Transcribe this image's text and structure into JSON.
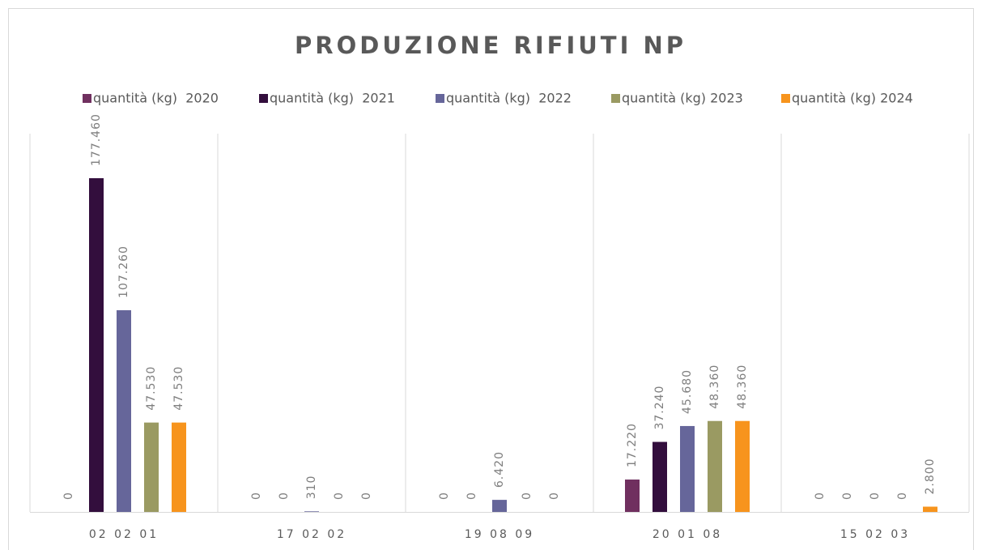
{
  "chart_data": {
    "type": "bar",
    "title": "PRODUZIONE RIFIUTI NP",
    "categories": [
      "02 02 01",
      "17 02 02",
      "19 08 09",
      "20 01 08",
      "15 02 03"
    ],
    "series": [
      {
        "name": "quantità (kg)  2020",
        "color": "#70305f",
        "values": [
          0,
          0,
          0,
          17220,
          0
        ],
        "value_labels": [
          "0",
          "0",
          "0",
          "17.220",
          "0"
        ]
      },
      {
        "name": "quantità (kg)  2021",
        "color": "#330e3d",
        "values": [
          177460,
          0,
          0,
          37240,
          0
        ],
        "value_labels": [
          "177.460",
          "0",
          "0",
          "37.240",
          "0"
        ]
      },
      {
        "name": "quantità (kg)  2022",
        "color": "#66669a",
        "values": [
          107260,
          310,
          6420,
          45680,
          0
        ],
        "value_labels": [
          "107.260",
          "310",
          "6.420",
          "45.680",
          "0"
        ]
      },
      {
        "name": "quantità (kg) 2023",
        "color": "#9a9a62",
        "values": [
          47530,
          0,
          0,
          48360,
          0
        ],
        "value_labels": [
          "47.530",
          "0",
          "0",
          "48.360",
          "0"
        ]
      },
      {
        "name": "quantità (kg) 2024",
        "color": "#f7941d",
        "values": [
          47530,
          0,
          0,
          48360,
          2800
        ],
        "value_labels": [
          "47.530",
          "0",
          "0",
          "48.360",
          "2.800"
        ]
      }
    ],
    "grid": true
  }
}
